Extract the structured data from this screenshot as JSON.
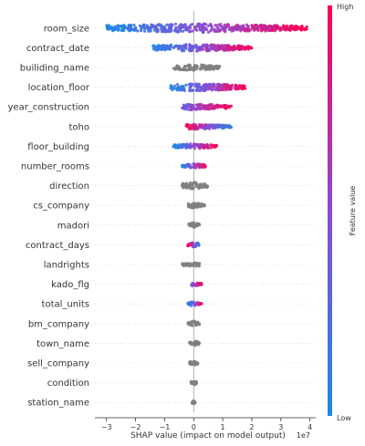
{
  "chart_data": {
    "type": "scatter",
    "subtype": "shap-beeswarm",
    "xlabel": "SHAP value (impact on model output)",
    "x_scale_note": "1e7",
    "xlim": [
      -3.4,
      4.2
    ],
    "x_ticks": [
      -3,
      -2,
      -1,
      0,
      1,
      2,
      3,
      4
    ],
    "x_tick_labels": [
      "−3",
      "−2",
      "−1",
      "0",
      "1",
      "2",
      "3",
      "4"
    ],
    "zero_line": true,
    "colors": {
      "low": "#1e88e5",
      "mid": "#8a4bd6",
      "high": "#ff0051",
      "neutral": "#7f7f7f",
      "zero_line": "#999999",
      "axis": "#333333"
    },
    "colorbar": {
      "label": "Feature value",
      "high_label": "High",
      "low_label": "Low"
    },
    "features": [
      {
        "name": "room_size",
        "min": -3.0,
        "max": 3.9,
        "width": 5.0,
        "color_mode": "gradient-low-left"
      },
      {
        "name": "contract_date",
        "min": -1.4,
        "max": 2.0,
        "width": 4.0,
        "color_mode": "gradient-low-left"
      },
      {
        "name": "builiding_name",
        "min": -0.7,
        "max": 0.9,
        "width": 3.5,
        "color_mode": "neutral"
      },
      {
        "name": "location_floor",
        "min": -0.8,
        "max": 1.8,
        "width": 4.5,
        "color_mode": "gradient-low-left"
      },
      {
        "name": "year_construction",
        "min": -0.4,
        "max": 1.3,
        "width": 3.5,
        "color_mode": "gradient-high-right"
      },
      {
        "name": "toho",
        "min": -0.3,
        "max": 1.3,
        "width": 3.0,
        "color_mode": "gradient-high-left"
      },
      {
        "name": "floor_building",
        "min": -0.7,
        "max": 0.8,
        "width": 3.0,
        "color_mode": "gradient-low-left"
      },
      {
        "name": "number_rooms",
        "min": -0.4,
        "max": 0.4,
        "width": 3.0,
        "color_mode": "gradient-low-left"
      },
      {
        "name": "direction",
        "min": -0.4,
        "max": 0.5,
        "width": 4.0,
        "color_mode": "neutral"
      },
      {
        "name": "cs_company",
        "min": -0.2,
        "max": 0.4,
        "width": 3.0,
        "color_mode": "neutral"
      },
      {
        "name": "madori",
        "min": -0.2,
        "max": 0.2,
        "width": 3.0,
        "color_mode": "neutral"
      },
      {
        "name": "contract_days",
        "min": -0.2,
        "max": 0.2,
        "width": 3.0,
        "color_mode": "gradient-low-right"
      },
      {
        "name": "landrights",
        "min": -0.4,
        "max": 0.2,
        "width": 2.5,
        "color_mode": "neutral"
      },
      {
        "name": "kado_flg",
        "min": -0.1,
        "max": 0.3,
        "width": 2.0,
        "color_mode": "gradient-high-right"
      },
      {
        "name": "total_units",
        "min": -0.2,
        "max": 0.3,
        "width": 2.5,
        "color_mode": "gradient-low-left"
      },
      {
        "name": "bm_company",
        "min": -0.2,
        "max": 0.2,
        "width": 3.0,
        "color_mode": "neutral"
      },
      {
        "name": "town_name",
        "min": -0.15,
        "max": 0.2,
        "width": 3.0,
        "color_mode": "neutral"
      },
      {
        "name": "sell_company",
        "min": -0.15,
        "max": 0.15,
        "width": 3.0,
        "color_mode": "neutral"
      },
      {
        "name": "condition",
        "min": -0.1,
        "max": 0.1,
        "width": 2.5,
        "color_mode": "neutral"
      },
      {
        "name": "station_name",
        "min": -0.05,
        "max": 0.05,
        "width": 2.0,
        "color_mode": "neutral"
      }
    ]
  }
}
